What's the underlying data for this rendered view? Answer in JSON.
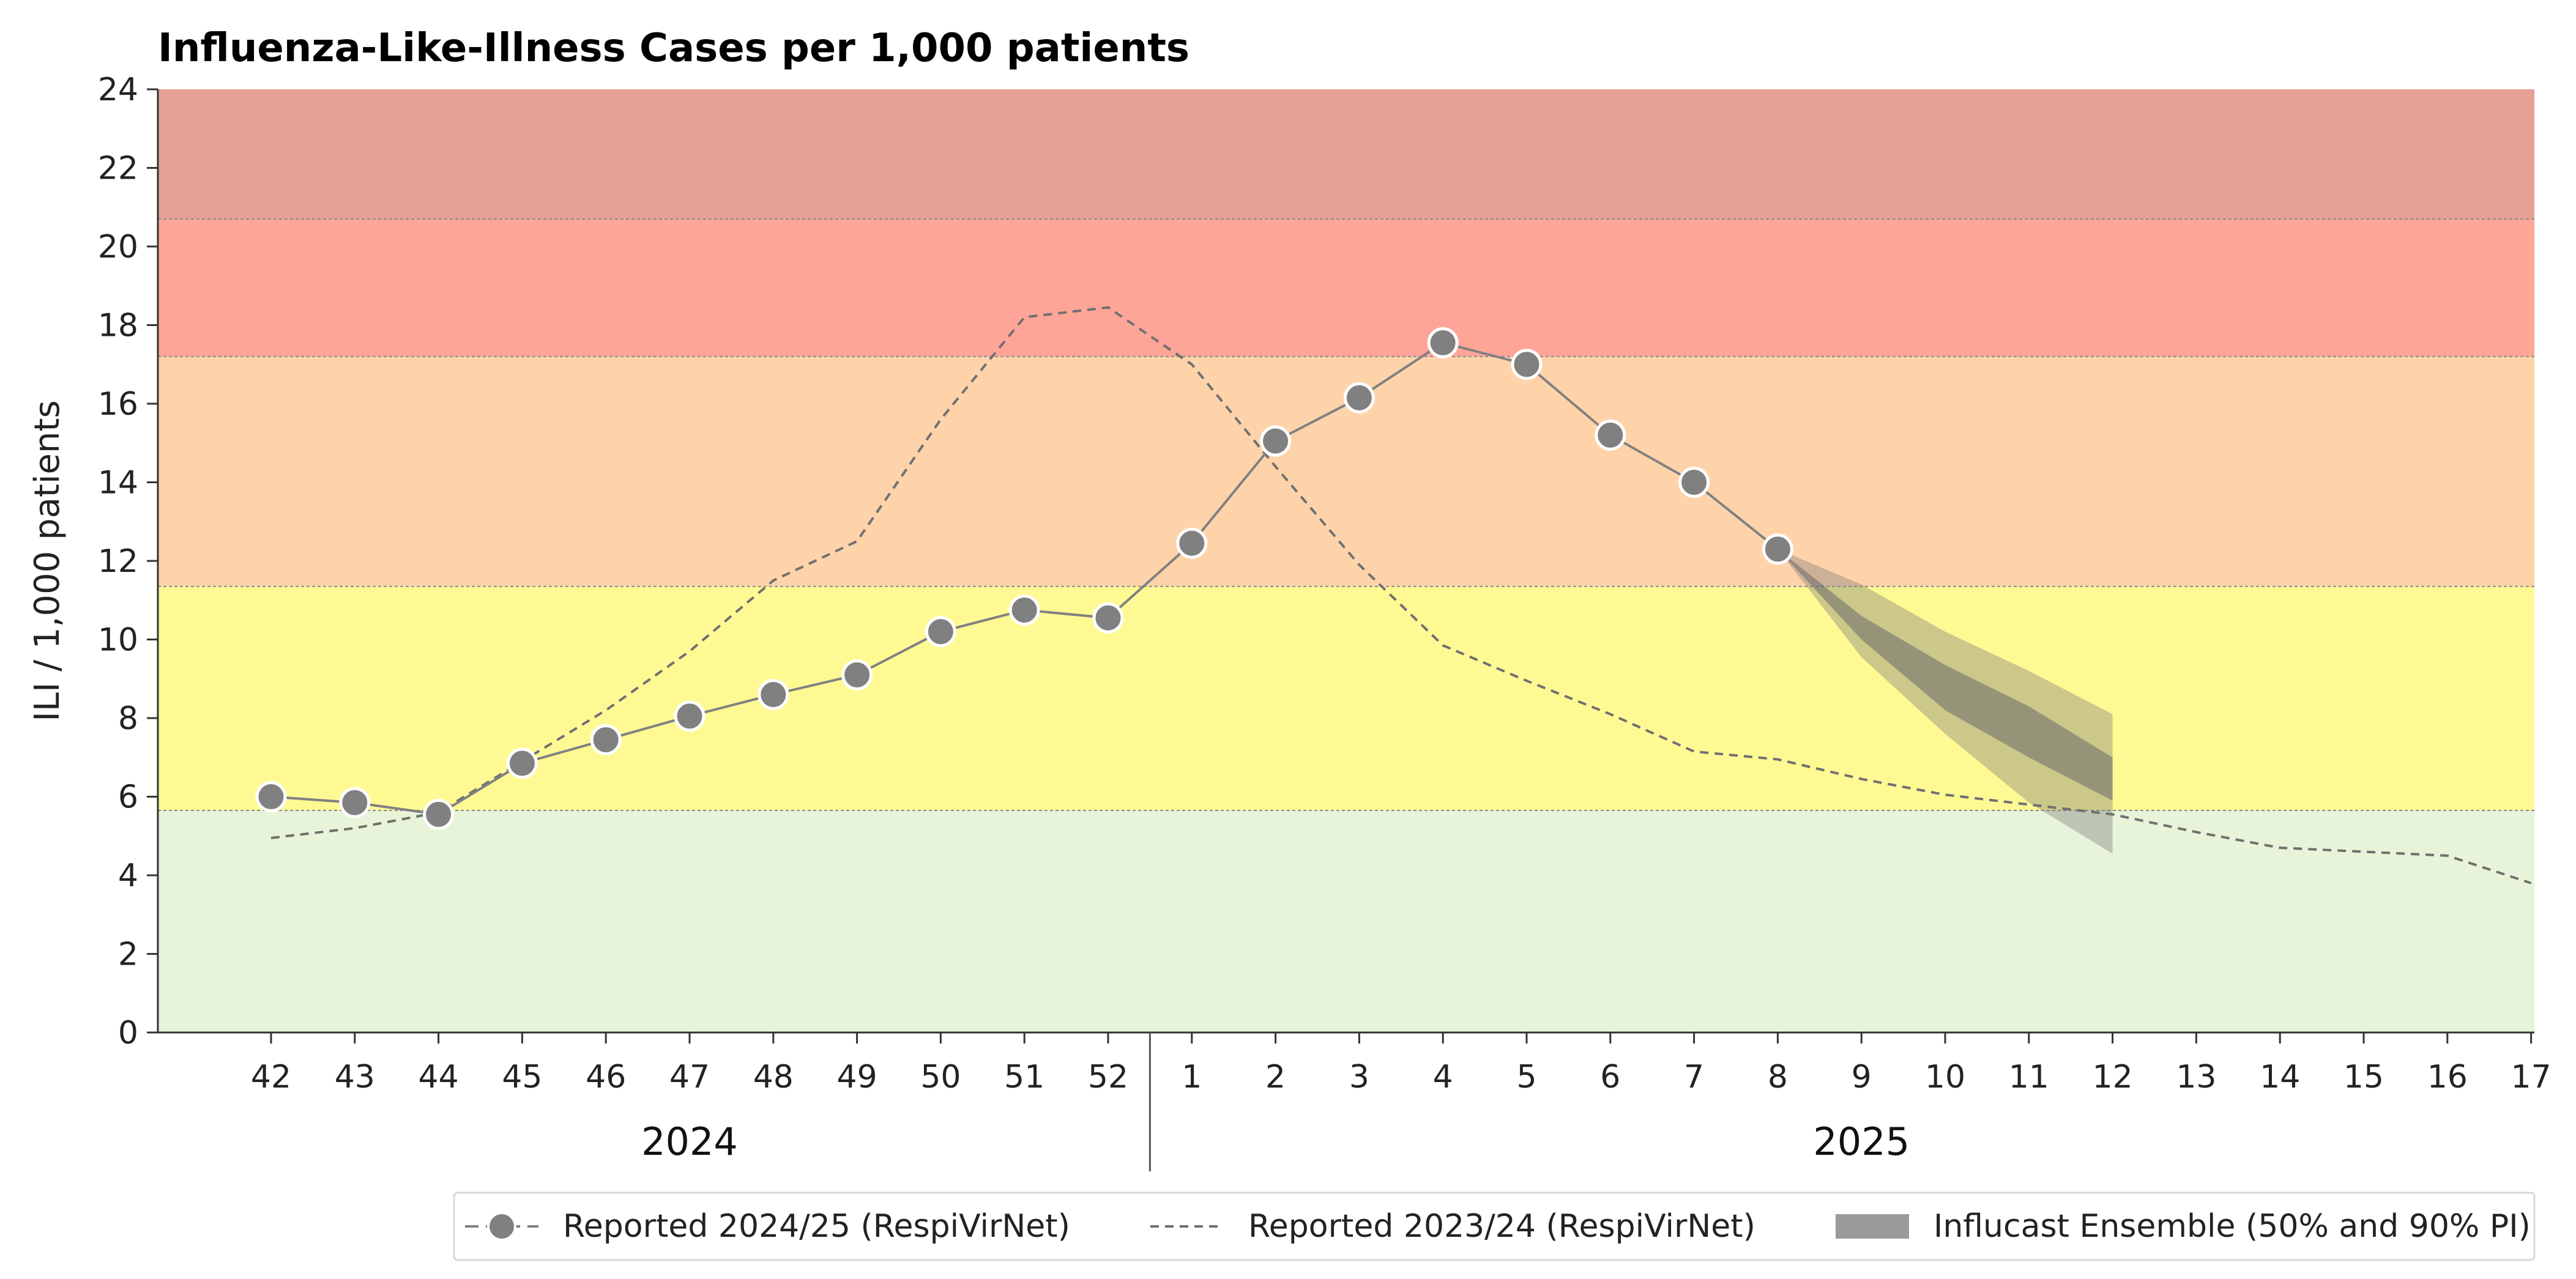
{
  "chart_data": {
    "type": "line",
    "title": "Influenza-Like-Illness Cases per 1,000 patients",
    "ylabel": "ILI / 1,000 patients",
    "ylim": [
      0,
      24
    ],
    "yticks": [
      0,
      2,
      4,
      6,
      8,
      10,
      12,
      14,
      16,
      18,
      20,
      22,
      24
    ],
    "x_ticks": [
      "42",
      "43",
      "44",
      "45",
      "46",
      "47",
      "48",
      "49",
      "50",
      "51",
      "52",
      "1",
      "2",
      "3",
      "4",
      "5",
      "6",
      "7",
      "8",
      "9",
      "10",
      "11",
      "12",
      "13",
      "14",
      "15",
      "16",
      "17"
    ],
    "year_labels": [
      {
        "label": "2024",
        "from_index": 0,
        "to_index": 10
      },
      {
        "label": "2025",
        "from_index": 11,
        "to_index": 27
      }
    ],
    "thresholds": [
      {
        "from": 0,
        "to": 5.65,
        "color": "#e8f4d9"
      },
      {
        "from": 5.65,
        "to": 11.35,
        "color": "#fff994"
      },
      {
        "from": 11.35,
        "to": 17.2,
        "color": "#ffd3aa"
      },
      {
        "from": 17.2,
        "to": 20.7,
        "color": "#ffa598"
      },
      {
        "from": 20.7,
        "to": 24,
        "color": "#e6a096"
      }
    ],
    "series": [
      {
        "name": "Reported 2024/25 (RespiVirNet)",
        "style": "solid-markers",
        "color": "#808080",
        "x_index": [
          0,
          1,
          2,
          3,
          4,
          5,
          6,
          7,
          8,
          9,
          10,
          11,
          12,
          13,
          14,
          15,
          16,
          17,
          18
        ],
        "values": [
          6.0,
          5.85,
          5.55,
          6.85,
          7.45,
          8.05,
          8.6,
          9.1,
          10.2,
          10.75,
          10.55,
          12.45,
          15.05,
          16.15,
          17.55,
          17.0,
          15.2,
          14.0,
          12.3
        ]
      },
      {
        "name": "Reported 2023/24 (RespiVirNet)",
        "style": "dashed",
        "color": "#707070",
        "x_index": [
          0,
          1,
          2,
          3,
          4,
          5,
          6,
          7,
          8,
          9,
          10,
          11,
          12,
          13,
          14,
          15,
          16,
          17,
          18,
          19,
          20,
          21,
          22,
          23,
          24,
          25,
          26,
          27
        ],
        "values": [
          4.95,
          5.2,
          5.6,
          6.9,
          8.2,
          9.7,
          11.5,
          12.5,
          15.6,
          18.2,
          18.45,
          17.0,
          14.4,
          11.9,
          9.85,
          8.95,
          8.1,
          7.15,
          6.95,
          6.45,
          6.05,
          5.8,
          5.55,
          5.1,
          4.7,
          4.6,
          4.5,
          3.8
        ]
      },
      {
        "name": "Influcast Ensemble (50% and 90% PI)",
        "style": "band",
        "color": "#808080",
        "x_index": [
          18,
          19,
          20,
          21,
          22
        ],
        "median": [
          12.3,
          10.5,
          9.0,
          7.95,
          6.95
        ],
        "lower50": [
          12.3,
          10.0,
          8.2,
          7.0,
          5.9
        ],
        "upper50": [
          12.3,
          10.6,
          9.35,
          8.3,
          7.0
        ],
        "lower90": [
          12.3,
          9.55,
          7.6,
          5.85,
          4.55
        ],
        "upper90": [
          12.3,
          11.4,
          10.2,
          9.2,
          8.1
        ]
      }
    ],
    "legend": {
      "placement": "bottom-right",
      "entries": [
        "Reported 2024/25 (RespiVirNet)",
        "Reported 2023/24 (RespiVirNet)",
        "Influcast Ensemble (50% and 90% PI)"
      ]
    },
    "grid": false
  }
}
